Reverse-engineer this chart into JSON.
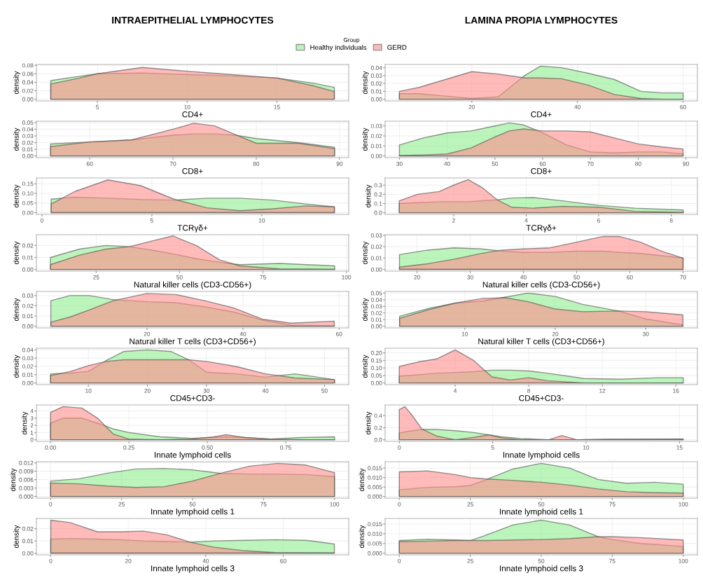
{
  "chart_data": [
    {
      "type": "area",
      "title": "INTRAEPITHELIAL LYMPHOCYTES",
      "xlabel": "CD4+",
      "ylabel": "density",
      "legend": "top",
      "legend_title": "Group",
      "grid": true,
      "x": [
        2.4,
        4,
        5,
        7.5,
        10,
        12.5,
        15,
        17,
        18.2
      ],
      "xlim": [
        1.6,
        19.0
      ],
      "xticks": [
        5,
        10,
        15
      ],
      "ylim": [
        -0.004,
        0.082
      ],
      "yticks": [
        {
          "value": 0,
          "label": "0.00"
        },
        {
          "value": 0.02,
          "label": "0.02"
        },
        {
          "value": 0.04,
          "label": "0.04"
        },
        {
          "value": 0.06,
          "label": "0.06"
        },
        {
          "value": 0.08,
          "label": "0.08"
        }
      ],
      "series": [
        {
          "name": "Healthy individuals",
          "color": "#90ee90",
          "values": [
            0.044,
            0.054,
            0.06,
            0.062,
            0.058,
            0.055,
            0.05,
            0.038,
            0.028
          ]
        },
        {
          "name": "GERD",
          "color": "#ff8c8c",
          "values": [
            0.036,
            0.05,
            0.06,
            0.075,
            0.066,
            0.058,
            0.05,
            0.032,
            0.018
          ]
        }
      ]
    },
    {
      "type": "area",
      "xlabel": "CD8+",
      "ylabel": "density",
      "grid": true,
      "x": [
        55.3,
        60,
        65,
        70,
        72.5,
        75,
        77.5,
        80,
        85,
        89.4
      ],
      "xlim": [
        53.6,
        91.1
      ],
      "xticks": [
        60,
        70,
        80,
        90
      ],
      "ylim": [
        -0.0025,
        0.052
      ],
      "yticks": [
        {
          "value": 0,
          "label": "0.00"
        },
        {
          "value": 0.01,
          "label": "0.01"
        },
        {
          "value": 0.02,
          "label": "0.02"
        },
        {
          "value": 0.03,
          "label": "0.03"
        },
        {
          "value": 0.04,
          "label": "0.04"
        },
        {
          "value": 0.05,
          "label": "0.05"
        }
      ],
      "series": [
        {
          "color": "#90ee90",
          "values": [
            0.018,
            0.021,
            0.024,
            0.031,
            0.033,
            0.033,
            0.031,
            0.026,
            0.02,
            0.013
          ]
        },
        {
          "color": "#ff8c8c",
          "values": [
            0.014,
            0.021,
            0.024,
            0.04,
            0.049,
            0.045,
            0.032,
            0.019,
            0.019,
            0.011
          ]
        }
      ]
    },
    {
      "type": "area",
      "xlabel": "TCRγδ+",
      "ylabel": "density",
      "grid": true,
      "x": [
        0.42,
        1.5,
        3,
        4.5,
        6,
        7.5,
        9,
        10.5,
        12,
        13.3
      ],
      "xlim": [
        -0.25,
        13.95
      ],
      "xticks": [
        0,
        5,
        10
      ],
      "ylim": [
        -0.009,
        0.18
      ],
      "yticks": [
        {
          "value": 0,
          "label": "0.00"
        },
        {
          "value": 0.05,
          "label": "0.05"
        },
        {
          "value": 0.1,
          "label": "0.10"
        },
        {
          "value": 0.15,
          "label": "0.15"
        }
      ],
      "series": [
        {
          "color": "#90ee90",
          "values": [
            0.07,
            0.08,
            0.075,
            0.068,
            0.065,
            0.075,
            0.075,
            0.065,
            0.045,
            0.03
          ]
        },
        {
          "color": "#ff8c8c",
          "values": [
            0.045,
            0.11,
            0.17,
            0.14,
            0.07,
            0.025,
            0.01,
            0.02,
            0.035,
            0.03
          ]
        }
      ]
    },
    {
      "type": "area",
      "xlabel": "Natural killer cells (CD3-CD56+)",
      "ylabel": "density",
      "grid": true,
      "x": [
        11.3,
        20,
        28,
        35,
        42,
        48,
        55,
        62,
        68,
        80,
        96.5
      ],
      "xlim": [
        7.1,
        100.7
      ],
      "xticks": [
        25,
        50,
        75,
        100
      ],
      "ylim": [
        -0.0014,
        0.029
      ],
      "yticks": [
        {
          "value": 0,
          "label": "0.00"
        },
        {
          "value": 0.01,
          "label": "0.01"
        },
        {
          "value": 0.02,
          "label": "0.02"
        }
      ],
      "series": [
        {
          "color": "#90ee90",
          "values": [
            0.01,
            0.017,
            0.02,
            0.019,
            0.016,
            0.013,
            0.009,
            0.006,
            0.004,
            0.005,
            0.003
          ]
        },
        {
          "color": "#ff8c8c",
          "values": [
            0.004,
            0.012,
            0.017,
            0.019,
            0.024,
            0.028,
            0.02,
            0.008,
            0.003,
            0.0005,
            0.0003
          ]
        }
      ]
    },
    {
      "type": "area",
      "xlabel": "Natural killer T cells (CD3+CD56+)",
      "ylabel": "density",
      "grid": true,
      "x": [
        0,
        4,
        8,
        13,
        20,
        26,
        32,
        38,
        44,
        50,
        59
      ],
      "xlim": [
        -3,
        62
      ],
      "xticks": [
        20,
        40,
        60
      ],
      "ylim": [
        -0.0016,
        0.034
      ],
      "yticks": [
        {
          "value": 0,
          "label": "0.00"
        },
        {
          "value": 0.01,
          "label": "0.01"
        },
        {
          "value": 0.02,
          "label": "0.02"
        },
        {
          "value": 0.03,
          "label": "0.03"
        }
      ],
      "series": [
        {
          "color": "#90ee90",
          "values": [
            0.025,
            0.03,
            0.03,
            0.026,
            0.024,
            0.023,
            0.019,
            0.014,
            0.006,
            0.001,
            0.0005
          ]
        },
        {
          "color": "#ff8c8c",
          "values": [
            0.004,
            0.009,
            0.016,
            0.025,
            0.032,
            0.031,
            0.025,
            0.018,
            0.007,
            0.003,
            0.005
          ]
        }
      ]
    },
    {
      "type": "area",
      "xlabel": "CD45+CD3-",
      "ylabel": "density",
      "grid": true,
      "x": [
        3.6,
        7,
        10,
        13,
        16,
        20,
        24,
        27,
        30,
        35,
        40,
        45,
        51.7
      ],
      "xlim": [
        1.2,
        54.1
      ],
      "xticks": [
        10,
        20,
        30,
        40,
        50
      ],
      "ylim": [
        -0.002,
        0.042
      ],
      "yticks": [
        {
          "value": 0,
          "label": "0.00"
        },
        {
          "value": 0.01,
          "label": "0.01"
        },
        {
          "value": 0.02,
          "label": "0.02"
        },
        {
          "value": 0.03,
          "label": "0.03"
        },
        {
          "value": 0.04,
          "label": "0.04"
        }
      ],
      "series": [
        {
          "color": "#90ee90",
          "values": [
            0.011,
            0.012,
            0.014,
            0.027,
            0.038,
            0.04,
            0.038,
            0.028,
            0.013,
            0.011,
            0.007,
            0.011,
            0.004
          ]
        },
        {
          "color": "#ff8c8c",
          "values": [
            0.009,
            0.014,
            0.021,
            0.026,
            0.028,
            0.028,
            0.028,
            0.028,
            0.026,
            0.02,
            0.011,
            0.006,
            0.004
          ]
        }
      ]
    },
    {
      "type": "area",
      "xlabel": "Innate lymphoid cells",
      "ylabel": "density",
      "grid": true,
      "x": [
        0,
        0.04,
        0.1,
        0.15,
        0.2,
        0.25,
        0.35,
        0.45,
        0.52,
        0.56,
        0.62,
        0.7,
        0.8,
        0.906
      ],
      "xlim": [
        -0.045,
        0.951
      ],
      "xticks": [
        {
          "value": 0,
          "label": "0.00"
        },
        {
          "value": 0.25,
          "label": "0.25"
        },
        {
          "value": 0.5,
          "label": "0.50"
        },
        {
          "value": 0.75,
          "label": "0.75"
        }
      ],
      "ylim": [
        -0.23,
        4.83
      ],
      "yticks": [
        0,
        1,
        2,
        3,
        4
      ],
      "series": [
        {
          "color": "#90ee90",
          "values": [
            2.3,
            3.0,
            3.0,
            2.3,
            1.5,
            1.0,
            0.4,
            0.2,
            0.3,
            0.4,
            0.3,
            0.1,
            0.3,
            0.4
          ]
        },
        {
          "color": "#ff8c8c",
          "values": [
            3.8,
            4.6,
            4.4,
            3.0,
            0.8,
            0.1,
            0.0,
            0.1,
            0.4,
            0.7,
            0.3,
            0.1,
            0.0,
            0.0
          ]
        }
      ]
    },
    {
      "type": "area",
      "xlabel": "Innate lymphoid cells 1",
      "ylabel": "density",
      "grid": true,
      "x": [
        0,
        10,
        20,
        30,
        40,
        50,
        60,
        70,
        80,
        90,
        100
      ],
      "xlim": [
        -5,
        105
      ],
      "xticks": [
        0,
        25,
        50,
        75,
        100
      ],
      "ylim": [
        -0.0006,
        0.0124
      ],
      "yticks": [
        {
          "value": 0,
          "label": "0.000"
        },
        {
          "value": 0.003,
          "label": "0.003"
        },
        {
          "value": 0.006,
          "label": "0.006"
        },
        {
          "value": 0.009,
          "label": "0.009"
        },
        {
          "value": 0.012,
          "label": "0.012"
        }
      ],
      "series": [
        {
          "color": "#90ee90",
          "values": [
            0.0055,
            0.0063,
            0.0083,
            0.0098,
            0.01,
            0.0095,
            0.0082,
            0.008,
            0.008,
            0.0078,
            0.0071
          ]
        },
        {
          "color": "#ff8c8c",
          "values": [
            0.0048,
            0.0045,
            0.0037,
            0.0032,
            0.0035,
            0.0055,
            0.0083,
            0.0108,
            0.0118,
            0.0112,
            0.0085
          ]
        }
      ]
    },
    {
      "type": "area",
      "xlabel": "Innate lymphoid cells 3",
      "ylabel": "density",
      "grid": true,
      "x": [
        0,
        5,
        12,
        18,
        24,
        30,
        36,
        42,
        50,
        58,
        66,
        73.2
      ],
      "xlim": [
        -3.7,
        76.9
      ],
      "xticks": [
        0,
        20,
        40,
        60
      ],
      "ylim": [
        -0.0014,
        0.0284
      ],
      "yticks": [
        {
          "value": 0,
          "label": "0.00"
        },
        {
          "value": 0.01,
          "label": "0.01"
        },
        {
          "value": 0.02,
          "label": "0.02"
        }
      ],
      "series": [
        {
          "color": "#90ee90",
          "values": [
            0.0115,
            0.012,
            0.0115,
            0.011,
            0.01,
            0.0095,
            0.009,
            0.01,
            0.0105,
            0.011,
            0.0105,
            0.0075
          ]
        },
        {
          "color": "#ff8c8c",
          "values": [
            0.027,
            0.025,
            0.0175,
            0.0175,
            0.018,
            0.015,
            0.009,
            0.005,
            0.002,
            0.0005,
            0.0003,
            0.0002
          ]
        }
      ]
    },
    {
      "type": "area",
      "title": "LAMINA PROPIA LYMPHOCYTES",
      "xlabel": "CD4+",
      "ylabel": "density",
      "grid": true,
      "x": [
        6.3,
        10,
        15,
        20,
        25,
        30,
        33,
        37,
        42,
        47,
        52,
        56,
        60
      ],
      "xlim": [
        3.6,
        62.7
      ],
      "xticks": [
        20,
        40,
        60
      ],
      "ylim": [
        -0.0021,
        0.0441
      ],
      "yticks": [
        {
          "value": 0,
          "label": "0.00"
        },
        {
          "value": 0.01,
          "label": "0.01"
        },
        {
          "value": 0.02,
          "label": "0.02"
        },
        {
          "value": 0.03,
          "label": "0.03"
        },
        {
          "value": 0.04,
          "label": "0.04"
        }
      ],
      "series": [
        {
          "color": "#90ee90",
          "values": [
            0.007,
            0.007,
            0.004,
            0.001,
            0.003,
            0.03,
            0.042,
            0.04,
            0.033,
            0.025,
            0.01,
            0.008,
            0.008
          ]
        },
        {
          "color": "#ff8c8c",
          "values": [
            0.01,
            0.015,
            0.025,
            0.035,
            0.032,
            0.027,
            0.027,
            0.026,
            0.018,
            0.006,
            0.001,
            0.0,
            0.0
          ]
        }
      ]
    },
    {
      "type": "area",
      "xlabel": "CD8+",
      "ylabel": "density",
      "grid": true,
      "x": [
        30,
        35,
        40,
        45,
        50,
        53,
        56,
        60,
        65,
        70,
        75,
        80,
        85,
        89.4
      ],
      "xlim": [
        27,
        92.4
      ],
      "xticks": [
        30,
        40,
        50,
        60,
        70,
        80,
        90
      ],
      "ylim": [
        -0.0017,
        0.0347
      ],
      "yticks": [
        {
          "value": 0,
          "label": "0.00"
        },
        {
          "value": 0.01,
          "label": "0.01"
        },
        {
          "value": 0.02,
          "label": "0.02"
        },
        {
          "value": 0.03,
          "label": "0.03"
        }
      ],
      "series": [
        {
          "color": "#90ee90",
          "values": [
            0.011,
            0.018,
            0.023,
            0.025,
            0.03,
            0.033,
            0.031,
            0.023,
            0.011,
            0.004,
            0.003,
            0.004,
            0.004,
            0.002
          ]
        },
        {
          "color": "#ff8c8c",
          "values": [
            0.0005,
            0.001,
            0.002,
            0.008,
            0.019,
            0.025,
            0.027,
            0.025,
            0.025,
            0.024,
            0.018,
            0.012,
            0.009,
            0.007
          ]
        }
      ]
    },
    {
      "type": "area",
      "xlabel": "TCRγδ+",
      "ylabel": "density",
      "grid": true,
      "x": [
        0.5,
        1.0,
        1.6,
        2.0,
        2.4,
        2.8,
        3.2,
        3.6,
        4.2,
        5,
        6,
        7,
        8.33
      ],
      "xlim": [
        0.11,
        8.72
      ],
      "xticks": [
        2,
        4,
        6,
        8
      ],
      "ylim": [
        -0.018,
        0.378
      ],
      "yticks": [
        {
          "value": 0,
          "label": "0.0"
        },
        {
          "value": 0.1,
          "label": "0.1"
        },
        {
          "value": 0.2,
          "label": "0.2"
        },
        {
          "value": 0.3,
          "label": "0.3"
        }
      ],
      "series": [
        {
          "color": "#90ee90",
          "values": [
            0.1,
            0.11,
            0.12,
            0.12,
            0.12,
            0.13,
            0.14,
            0.16,
            0.165,
            0.13,
            0.08,
            0.05,
            0.03
          ]
        },
        {
          "color": "#ff8c8c",
          "values": [
            0.13,
            0.2,
            0.23,
            0.3,
            0.36,
            0.27,
            0.14,
            0.06,
            0.05,
            0.07,
            0.06,
            0.015,
            0.005
          ]
        }
      ]
    },
    {
      "type": "area",
      "xlabel": "Natural killer cells (CD3-CD56+)",
      "ylabel": "density",
      "grid": true,
      "x": [
        16.7,
        22,
        27,
        32,
        36,
        40,
        45,
        50,
        55,
        58,
        62,
        66,
        70
      ],
      "xlim": [
        14,
        72.7
      ],
      "xticks": [
        20,
        30,
        40,
        50,
        60,
        70
      ],
      "ylim": [
        -0.0015,
        0.0305
      ],
      "yticks": [
        {
          "value": 0,
          "label": "0.00"
        },
        {
          "value": 0.01,
          "label": "0.01"
        },
        {
          "value": 0.02,
          "label": "0.02"
        },
        {
          "value": 0.03,
          "label": "0.03"
        }
      ],
      "series": [
        {
          "color": "#90ee90",
          "values": [
            0.013,
            0.017,
            0.019,
            0.018,
            0.016,
            0.015,
            0.015,
            0.016,
            0.016,
            0.015,
            0.014,
            0.012,
            0.01
          ]
        },
        {
          "color": "#ff8c8c",
          "values": [
            0.002,
            0.005,
            0.009,
            0.014,
            0.017,
            0.018,
            0.019,
            0.024,
            0.029,
            0.029,
            0.024,
            0.016,
            0.01
          ]
        }
      ]
    },
    {
      "type": "area",
      "xlabel": "Natural killer T cells (CD3+CD56+)",
      "ylabel": "density",
      "grid": true,
      "x": [
        2.8,
        6,
        9,
        12,
        14.5,
        17,
        20,
        23,
        27,
        30,
        34.1
      ],
      "xlim": [
        1.2,
        35.7
      ],
      "xticks": [
        10,
        20,
        30
      ],
      "ylim": [
        -0.0025,
        0.0525
      ],
      "yticks": [
        {
          "value": 0,
          "label": "0.00"
        },
        {
          "value": 0.01,
          "label": "0.01"
        },
        {
          "value": 0.02,
          "label": "0.02"
        },
        {
          "value": 0.03,
          "label": "0.03"
        },
        {
          "value": 0.04,
          "label": "0.04"
        },
        {
          "value": 0.05,
          "label": "0.05"
        }
      ],
      "series": [
        {
          "color": "#90ee90",
          "values": [
            0.015,
            0.027,
            0.035,
            0.038,
            0.044,
            0.05,
            0.045,
            0.033,
            0.023,
            0.011,
            0.002
          ]
        },
        {
          "color": "#ff8c8c",
          "values": [
            0.012,
            0.025,
            0.035,
            0.042,
            0.043,
            0.037,
            0.026,
            0.022,
            0.023,
            0.022,
            0.017
          ]
        }
      ]
    },
    {
      "type": "area",
      "xlabel": "CD45+CD3-",
      "ylabel": "density",
      "grid": true,
      "x": [
        0.96,
        2,
        3,
        4,
        5,
        6,
        7,
        8,
        9,
        11,
        13,
        15,
        16.4
      ],
      "xlim": [
        0.19,
        17.17
      ],
      "xticks": [
        4,
        8,
        12,
        16
      ],
      "ylim": [
        -0.011,
        0.231
      ],
      "yticks": [
        {
          "value": 0,
          "label": "0.00"
        },
        {
          "value": 0.05,
          "label": "0.05"
        },
        {
          "value": 0.1,
          "label": "0.10"
        },
        {
          "value": 0.15,
          "label": "0.15"
        },
        {
          "value": 0.2,
          "label": "0.20"
        }
      ],
      "series": [
        {
          "color": "#90ee90",
          "values": [
            0.045,
            0.055,
            0.065,
            0.07,
            0.075,
            0.085,
            0.085,
            0.08,
            0.065,
            0.03,
            0.025,
            0.035,
            0.035
          ]
        },
        {
          "color": "#ff8c8c",
          "values": [
            0.11,
            0.14,
            0.16,
            0.22,
            0.15,
            0.04,
            0.02,
            0.035,
            0.015,
            0.0,
            0.0,
            0.0,
            0.0
          ]
        }
      ]
    },
    {
      "type": "area",
      "xlabel": "Innate lymphoid cells",
      "ylabel": "density",
      "grid": true,
      "x": [
        0,
        0.3,
        0.7,
        1.2,
        2,
        3,
        4,
        4.8,
        5.5,
        6.5,
        8,
        8.7,
        9.5,
        11,
        15.2
      ],
      "xlim": [
        -0.76,
        15.96
      ],
      "xticks": [
        0,
        5,
        10,
        15
      ],
      "ylim": [
        -0.0275,
        0.5775
      ],
      "yticks": [
        {
          "value": 0,
          "label": "0.0"
        },
        {
          "value": 0.2,
          "label": "0.2"
        },
        {
          "value": 0.4,
          "label": "0.4"
        }
      ],
      "series": [
        {
          "color": "#90ee90",
          "values": [
            0.11,
            0.13,
            0.15,
            0.17,
            0.17,
            0.15,
            0.12,
            0.08,
            0.05,
            0.02,
            0.0,
            0.0,
            0.0,
            0.01,
            0.01
          ]
        },
        {
          "color": "#ff8c8c",
          "values": [
            0.5,
            0.55,
            0.4,
            0.18,
            0.06,
            0.0,
            0.04,
            0.08,
            0.03,
            0.0,
            0.0,
            0.07,
            0.0,
            0.0,
            0.01
          ]
        }
      ]
    },
    {
      "type": "area",
      "xlabel": "Innate lymphoid cells 1",
      "ylabel": "density",
      "grid": true,
      "x": [
        0,
        10,
        20,
        25,
        30,
        40,
        50,
        60,
        70,
        80,
        90,
        100
      ],
      "xlim": [
        -5,
        105
      ],
      "xticks": [
        0,
        25,
        50,
        75,
        100
      ],
      "ylim": [
        -0.000875,
        0.018375
      ],
      "yticks": [
        {
          "value": 0,
          "label": "0.000"
        },
        {
          "value": 0.005,
          "label": "0.005"
        },
        {
          "value": 0.01,
          "label": "0.010"
        },
        {
          "value": 0.015,
          "label": "0.015"
        }
      ],
      "series": [
        {
          "color": "#90ee90",
          "values": [
            0.0035,
            0.0048,
            0.0052,
            0.0058,
            0.0085,
            0.0145,
            0.0175,
            0.015,
            0.009,
            0.007,
            0.0075,
            0.0065
          ]
        },
        {
          "color": "#ff8c8c",
          "values": [
            0.013,
            0.0135,
            0.0115,
            0.01,
            0.0093,
            0.0085,
            0.0075,
            0.006,
            0.004,
            0.0025,
            0.002,
            0.0018
          ]
        }
      ]
    },
    {
      "type": "area",
      "xlabel": "Innate lymphoid cells 3",
      "ylabel": "density",
      "grid": true,
      "x": [
        0,
        10,
        20,
        25,
        30,
        40,
        50,
        60,
        70,
        75,
        85,
        100
      ],
      "xlim": [
        -5,
        105
      ],
      "xticks": [
        0,
        25,
        50,
        75,
        100
      ],
      "ylim": [
        -0.00085,
        0.01785
      ],
      "yticks": [
        {
          "value": 0,
          "label": "0.000"
        },
        {
          "value": 0.005,
          "label": "0.005"
        },
        {
          "value": 0.01,
          "label": "0.010"
        },
        {
          "value": 0.015,
          "label": "0.015"
        }
      ],
      "series": [
        {
          "color": "#90ee90",
          "values": [
            0.0065,
            0.0072,
            0.0068,
            0.0065,
            0.009,
            0.0145,
            0.017,
            0.0145,
            0.0085,
            0.007,
            0.005,
            0.0035
          ]
        },
        {
          "color": "#ff8c8c",
          "values": [
            0.006,
            0.0062,
            0.0065,
            0.0065,
            0.0065,
            0.0068,
            0.007,
            0.0075,
            0.0085,
            0.0085,
            0.008,
            0.0068
          ]
        }
      ]
    }
  ]
}
